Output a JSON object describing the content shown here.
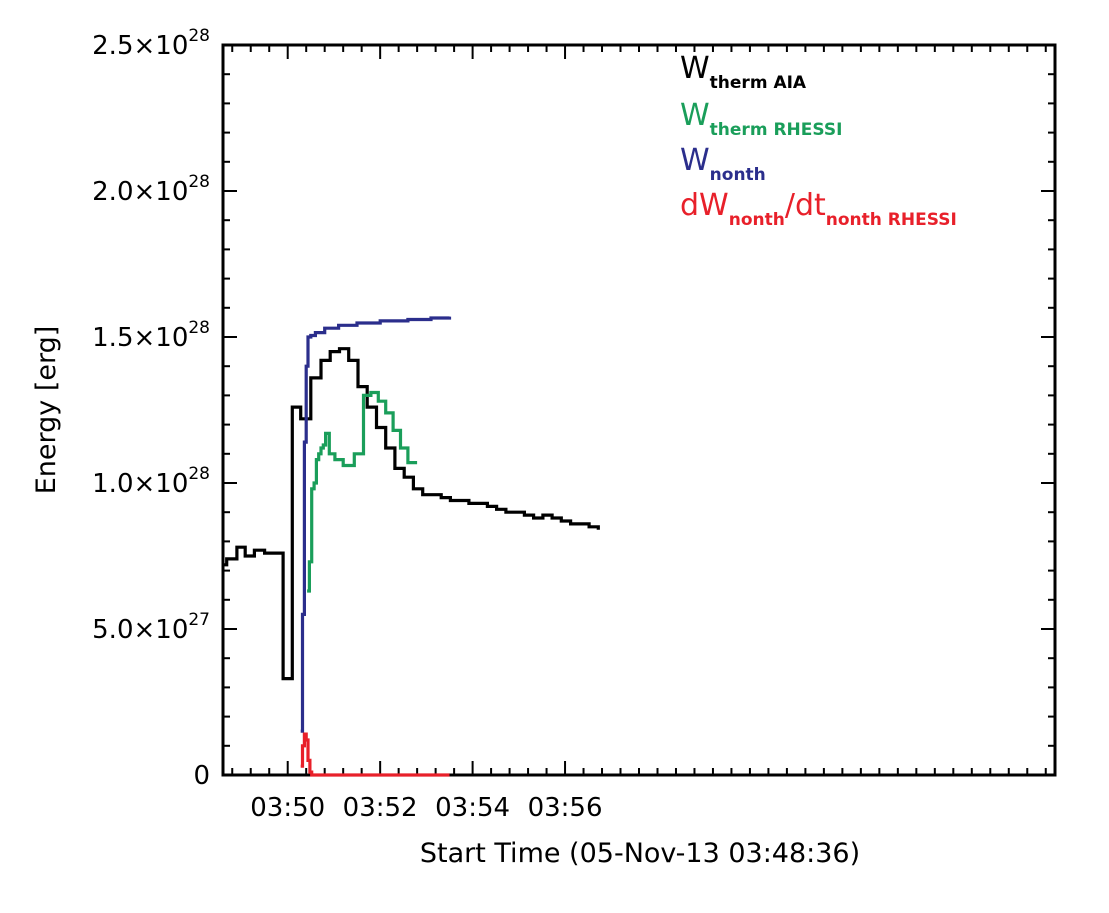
{
  "chart_data": {
    "type": "line",
    "xlabel": "Start Time (05-Nov-13 03:48:36)",
    "ylabel": "Energy [erg]",
    "xlim_minutes": [
      0,
      18
    ],
    "ylim": [
      0,
      2.5e+28
    ],
    "x_ticks": [
      {
        "label": "03:50",
        "minutes": 1.4
      },
      {
        "label": "03:52",
        "minutes": 3.4
      },
      {
        "label": "03:54",
        "minutes": 5.4
      },
      {
        "label": "03:56",
        "minutes": 7.4
      }
    ],
    "y_ticks": [
      {
        "value": 0,
        "mantissa": "0",
        "exponent": ""
      },
      {
        "value": 5e+27,
        "mantissa": "5.0×10",
        "exponent": "27"
      },
      {
        "value": 1e+28,
        "mantissa": "1.0×10",
        "exponent": "28"
      },
      {
        "value": 1.5e+28,
        "mantissa": "1.5×10",
        "exponent": "28"
      },
      {
        "value": 2e+28,
        "mantissa": "2.0×10",
        "exponent": "28"
      },
      {
        "value": 2.5e+28,
        "mantissa": "2.5×10",
        "exponent": "28"
      }
    ],
    "series": [
      {
        "name": "W therm AIA",
        "color": "#000000",
        "legend_main": "W",
        "legend_sub": "therm AIA",
        "x": [
          0.0,
          0.08,
          0.3,
          0.48,
          0.68,
          0.9,
          1.12,
          1.3,
          1.5,
          1.68,
          1.9,
          2.12,
          2.32,
          2.52,
          2.72,
          2.92,
          3.12,
          3.32,
          3.52,
          3.72,
          3.92,
          4.12,
          4.32,
          4.52,
          4.72,
          4.92,
          5.12,
          5.32,
          5.52,
          5.72,
          5.92,
          6.12,
          6.32,
          6.52,
          6.72,
          6.92,
          7.12,
          7.32,
          7.52,
          7.72,
          7.92,
          8.12
        ],
        "y": [
          7.2e+27,
          7.4e+27,
          7.8e+27,
          7.5e+27,
          7.7e+27,
          7.6e+27,
          7.6e+27,
          3.3e+27,
          1.26e+28,
          1.22e+28,
          1.36e+28,
          1.42e+28,
          1.45e+28,
          1.46e+28,
          1.42e+28,
          1.33e+28,
          1.26e+28,
          1.19e+28,
          1.12e+28,
          1.05e+28,
          1.02e+28,
          9.8e+27,
          9.6e+27,
          9.6e+27,
          9.5e+27,
          9.4e+27,
          9.4e+27,
          9.3e+27,
          9.3e+27,
          9.2e+27,
          9.1e+27,
          9e+27,
          9e+27,
          8.9e+27,
          8.8e+27,
          8.9e+27,
          8.8e+27,
          8.7e+27,
          8.6e+27,
          8.6e+27,
          8.5e+27,
          8.4e+27
        ]
      },
      {
        "name": "W therm RHESSI",
        "color": "#1a9e5a",
        "legend_main": "W",
        "legend_sub": "therm RHESSI",
        "x": [
          1.82,
          1.87,
          1.92,
          1.97,
          2.02,
          2.07,
          2.12,
          2.17,
          2.22,
          2.3,
          2.42,
          2.6,
          2.84,
          3.04,
          3.2,
          3.36,
          3.52,
          3.68,
          3.84,
          4.0,
          4.2
        ],
        "y": [
          6.3e+27,
          7.3e+27,
          9.8e+27,
          1e+28,
          1.08e+28,
          1.1e+28,
          1.12e+28,
          1.13e+28,
          1.17e+28,
          1.1e+28,
          1.08e+28,
          1.06e+28,
          1.1e+28,
          1.3e+28,
          1.31e+28,
          1.28e+28,
          1.24e+28,
          1.18e+28,
          1.12e+28,
          1.07e+28,
          1.07e+28
        ]
      },
      {
        "name": "W nonth",
        "color": "#2b2e8c",
        "legend_main": "W",
        "legend_sub": "nonth",
        "x": [
          1.68,
          1.72,
          1.76,
          1.8,
          1.84,
          1.9,
          2.0,
          2.2,
          2.5,
          2.9,
          3.4,
          4.0,
          4.5,
          4.9
        ],
        "y": [
          1.5e+27,
          5.5e+27,
          1.14e+28,
          1.4e+28,
          1.5e+28,
          1.505e+28,
          1.515e+28,
          1.53e+28,
          1.54e+28,
          1.548e+28,
          1.555e+28,
          1.56e+28,
          1.565e+28,
          1.57e+28
        ]
      },
      {
        "name": "dW nonth / dt nonth RHESSI",
        "color": "#e8202a",
        "legend_main": "dW",
        "legend_sub": "nonth",
        "legend_main2": "/dt",
        "legend_sub2": "nonth RHESSI",
        "x": [
          1.68,
          1.72,
          1.76,
          1.8,
          1.84,
          1.88,
          1.92,
          2.0,
          2.4,
          3.0,
          3.6,
          4.2,
          4.9
        ],
        "y": [
          3e+26,
          1e+27,
          1.4e+27,
          1.2e+27,
          5e+26,
          1e+26,
          0,
          0,
          0,
          0,
          0,
          0,
          0
        ]
      }
    ],
    "legend_position": "top-right",
    "grid": false
  }
}
